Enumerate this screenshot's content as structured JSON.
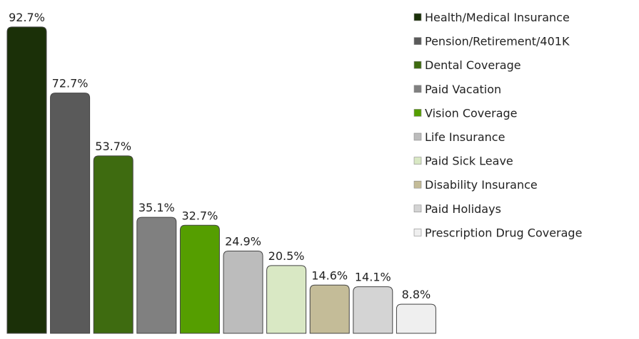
{
  "chart_data": {
    "type": "bar",
    "categories": [
      "Health/Medical Insurance",
      "Pension/Retirement/401K",
      "Dental Coverage",
      "Paid Vacation",
      "Vision Coverage",
      "Life Insurance",
      "Paid Sick Leave",
      "Disability Insurance",
      "Paid Holidays",
      "Prescription Drug Coverage"
    ],
    "values": [
      92.7,
      72.7,
      53.7,
      35.1,
      32.7,
      24.9,
      20.5,
      14.6,
      14.1,
      8.8
    ],
    "value_labels": [
      "92.7%",
      "72.7%",
      "53.7%",
      "35.1%",
      "32.7%",
      "24.9%",
      "20.5%",
      "14.6%",
      "14.1%",
      "8.8%"
    ],
    "colors": [
      "#1b3008",
      "#5a5a5a",
      "#3e6b10",
      "#808080",
      "#559e00",
      "#bcbcbc",
      "#d9e8c4",
      "#c4bc98",
      "#d4d4d4",
      "#efefef"
    ],
    "legend": "right"
  }
}
